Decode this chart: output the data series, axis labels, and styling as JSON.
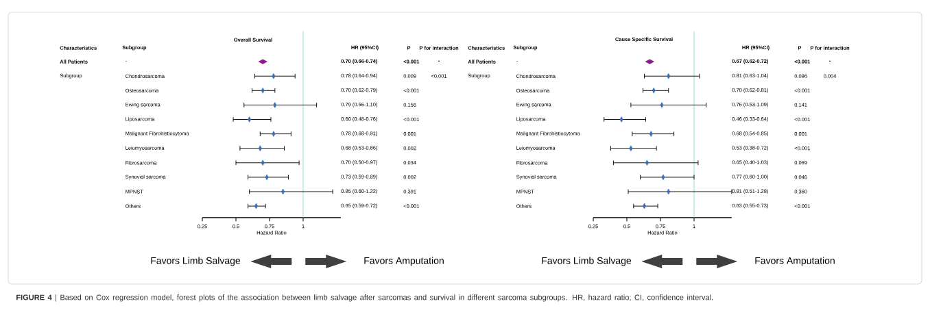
{
  "chart_data": [
    {
      "type": "scatter",
      "orientation": "horizontal",
      "title": "Overall Survival",
      "xlabel": "Hazard Ratio",
      "categories": [
        "-",
        "Chondrosarcoma",
        "Osteosarcoma",
        "Ewing sarcoma",
        "Liposarcoma",
        "Malignant Fibrohistiocytoma",
        "Leiomyosarcoma",
        "Fibrosarcoma",
        "Synovial sarcoma",
        "MPNST",
        "Others"
      ],
      "series": [
        {
          "color": "#8b1a8b",
          "marker": "diamond",
          "values": [
            0.7,
            null,
            null,
            null,
            null,
            null,
            null,
            null,
            null,
            null,
            null
          ]
        },
        {
          "color": "#3a6fb5",
          "marker": "diamond",
          "values": [
            null,
            0.78,
            0.7,
            0.79,
            0.6,
            0.78,
            0.68,
            0.7,
            0.73,
            0.85,
            0.65
          ],
          "errors": [
            null,
            [
              0.64,
              0.94
            ],
            [
              0.62,
              0.79
            ],
            [
              0.56,
              1.1
            ],
            [
              0.48,
              0.76
            ],
            [
              0.68,
              0.91
            ],
            [
              0.53,
              0.86
            ],
            [
              0.5,
              0.97
            ],
            [
              0.59,
              0.89
            ],
            [
              0.6,
              1.22
            ],
            [
              0.59,
              0.72
            ]
          ]
        }
      ],
      "value_labels": [
        "0.70 (0.66-0.74)",
        "0.78 (0.64-0.94)",
        "0.70 (0.62-0.79)",
        "0.79 (0.56-1.10)",
        "0.60 (0.48-0.76)",
        "0.78 (0.68-0.91)",
        "0.68 (0.53-0.86)",
        "0.70 (0.50-0.97)",
        "0.73 (0.59-0.89)",
        "0.85 (0.60-1.22)",
        "0.65 (0.59-0.72)"
      ],
      "xlim": [
        0.25,
        1.28
      ],
      "xticks": [
        0.25,
        0.5,
        0.75,
        1
      ],
      "ref_lines": [
        {
          "axis": "x",
          "value": 1,
          "color": "#7fd0d8"
        }
      ],
      "annotations": [
        "Characteristics",
        "Subgroup",
        "HR (95%CI)",
        "P",
        "P for interaction",
        "All Patients",
        "Subgroup",
        "<0.001",
        "0.009",
        "<0.001",
        "0.156",
        "<0.001",
        "0.001",
        "0.002",
        "0.034",
        "0.002",
        "0.391",
        "<0.001",
        "-",
        "<0.001",
        "Favors Limb Salvage",
        "Favors Amputation",
        "**FIGURE 4** | Based on Cox regression model, forest plots of the association between limb salvage after sarcomas and survival in different sarcoma subgroups. HR, hazard ratio; CI, confidence interval."
      ]
    },
    {
      "type": "scatter",
      "orientation": "horizontal",
      "title": "Cause Specific Survival",
      "xlabel": "Hazard Ratio",
      "categories": [
        "-",
        "Chondrosarcoma",
        "Osteosarcoma",
        "Ewing sarcoma",
        "Liposarcoma",
        "Malignant Fibrohistiocytoma",
        "Leiomyosarcoma",
        "Fibrosarcoma",
        "Synovial sarcoma",
        "MPNST",
        "Others"
      ],
      "series": [
        {
          "color": "#8b1a8b",
          "marker": "diamond",
          "values": [
            0.67,
            null,
            null,
            null,
            null,
            null,
            null,
            null,
            null,
            null,
            null
          ]
        },
        {
          "color": "#3a6fb5",
          "marker": "diamond",
          "values": [
            null,
            0.81,
            0.7,
            0.76,
            0.46,
            0.68,
            0.53,
            0.65,
            0.77,
            0.81,
            0.63
          ],
          "errors": [
            null,
            [
              0.63,
              1.04
            ],
            [
              0.62,
              0.81
            ],
            [
              0.53,
              1.09
            ],
            [
              0.33,
              0.64
            ],
            [
              0.54,
              0.85
            ],
            [
              0.38,
              0.72
            ],
            [
              0.4,
              1.03
            ],
            [
              0.6,
              1.0
            ],
            [
              0.51,
              1.28
            ],
            [
              0.55,
              0.73
            ]
          ]
        }
      ],
      "value_labels": [
        "0.67 (0.62-0.72)",
        "0.81 (0.63-1.04)",
        "0.70 (0.62-0.81)",
        "0.76 (0.53-1.09)",
        "0.46 (0.33-0.64)",
        "0.68 (0.54-0.85)",
        "0.53 (0.38-0.72)",
        "0.65 (0.40-1.03)",
        "0.77 (0.60-1.00)",
        "0.81 (0.51-1.28)",
        "0.63 (0.55-0.73)"
      ],
      "xlim": [
        0.25,
        1.28
      ],
      "xticks": [
        0.25,
        0.5,
        0.75,
        1
      ],
      "ref_lines": [
        {
          "axis": "x",
          "value": 1,
          "color": "#7fd0d8"
        }
      ],
      "annotations": [
        "Characteristics",
        "Subgroup",
        "HR (95%CI)",
        "P",
        "P for interaction",
        "All Patients",
        "Subgroup",
        "<0.001",
        "0.096",
        "<0.001",
        "0.141",
        "<0.001",
        "0.001",
        "<0.001",
        "0.069",
        "0.046",
        "0.360",
        "<0.001",
        "-",
        "0.004",
        "Favors Limb Salvage",
        "Favors Amputation"
      ]
    }
  ]
}
